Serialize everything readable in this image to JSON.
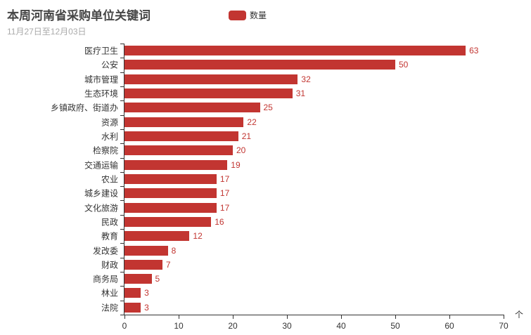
{
  "header": {
    "title": "本周河南省采购单位关键词",
    "subtitle": "11月27日至12月03日"
  },
  "legend": {
    "label": "数量",
    "marker_color": "#c23531"
  },
  "colors": {
    "bar": "#c23531",
    "value_label": "#c23531",
    "axis_line": "#333333",
    "axis_label": "#333333",
    "title": "#464646",
    "subtitle": "#aaaaaa",
    "background": "#ffffff"
  },
  "chart_data": {
    "type": "bar",
    "orientation": "horizontal",
    "title": "本周河南省采购单位关键词",
    "subtitle": "11月27日至12月03日",
    "series_name": "数量",
    "categories": [
      "医疗卫生",
      "公安",
      "城市管理",
      "生态环境",
      "乡镇政府、街道办",
      "资源",
      "水利",
      "检察院",
      "交通运输",
      "农业",
      "城乡建设",
      "文化旅游",
      "民政",
      "教育",
      "发改委",
      "财政",
      "商务局",
      "林业",
      "法院"
    ],
    "values": [
      63,
      50,
      32,
      31,
      25,
      22,
      21,
      20,
      19,
      17,
      17,
      17,
      16,
      12,
      8,
      7,
      5,
      3,
      3
    ],
    "xlim": [
      0,
      70
    ],
    "x_ticks": [
      "0",
      "10",
      "20",
      "30",
      "40",
      "50",
      "60",
      "70"
    ],
    "x_tick_values": [
      0,
      10,
      20,
      30,
      40,
      50,
      60,
      70
    ],
    "x_axis_name": "个",
    "grid": "off",
    "legend_position": "top-center",
    "value_labels": "right-of-bar"
  }
}
